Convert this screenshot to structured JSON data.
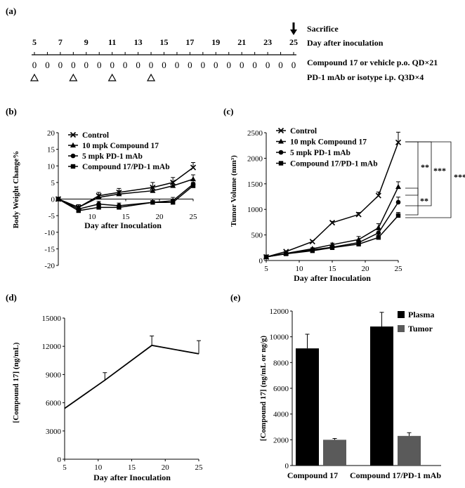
{
  "panel_a": {
    "label": "(a)",
    "sacrifice_label": "Sacrifice",
    "axis_caption": "Day after inoculation",
    "day_labels": [
      "5",
      "7",
      "9",
      "11",
      "13",
      "15",
      "17",
      "19",
      "21",
      "23",
      "25"
    ],
    "day_marks": [
      5,
      6,
      7,
      8,
      9,
      10,
      11,
      12,
      13,
      14,
      15,
      16,
      17,
      18,
      19,
      20,
      21,
      22,
      23,
      24,
      25
    ],
    "dose_symbol": "0",
    "triangle_days": [
      5,
      8,
      11,
      14
    ],
    "sacrifice_day": 25,
    "compound_schedule": "Compound 17 or vehicle p.o. QD×21",
    "pd1_schedule": "PD-1 mAb or isotype i.p. Q3D×4"
  },
  "chart_data": [
    {
      "panel": "(b)",
      "type": "line",
      "title": "",
      "xlabel": "Day after Inoculation",
      "ylabel": "Body Weight Change%",
      "xlim": [
        5,
        25
      ],
      "ylim": [
        -20,
        20
      ],
      "xticks": [
        "10",
        "15",
        "20",
        "25"
      ],
      "yticks": [
        "20",
        "15",
        "10",
        "5",
        "0",
        "-5",
        "-10",
        "-15",
        "-20"
      ],
      "x": [
        5,
        8,
        11,
        14,
        19,
        22,
        25
      ],
      "series": [
        {
          "name": "Control",
          "marker": "x",
          "values": [
            0,
            -2.5,
            1,
            2,
            3.5,
            5,
            9.5
          ],
          "err": [
            0.3,
            0.8,
            1,
            1.2,
            1.5,
            1.5,
            1.5
          ]
        },
        {
          "name": "10 mpk Compound 17",
          "marker": "triangle",
          "values": [
            0,
            -2.5,
            0.5,
            1.5,
            2.5,
            4,
            6
          ],
          "err": [
            0.3,
            0.8,
            0.8,
            1,
            1.2,
            1.3,
            1.3
          ]
        },
        {
          "name": "5 mpk PD-1 mAb",
          "marker": "circle",
          "values": [
            0,
            -3,
            -1.5,
            -2,
            -1,
            -0.5,
            4.5
          ],
          "err": [
            0.3,
            0.6,
            0.8,
            0.8,
            1,
            1,
            1
          ]
        },
        {
          "name": "Compound 17/PD-1 mAb",
          "marker": "square",
          "values": [
            0,
            -3.5,
            -2.5,
            -2.5,
            -1,
            -1,
            4
          ],
          "err": [
            0.3,
            0.6,
            0.6,
            0.6,
            1,
            1,
            1
          ]
        }
      ],
      "legend": "top-left"
    },
    {
      "panel": "(c)",
      "type": "line",
      "title": "",
      "xlabel": "Day after Inoculation",
      "ylabel": "Tumor Volume (mm³)",
      "xlim": [
        5,
        25
      ],
      "ylim": [
        0,
        2500
      ],
      "xticks": [
        "5",
        "10",
        "15",
        "20",
        "25"
      ],
      "yticks": [
        "2500",
        "2000",
        "1500",
        "1000",
        "500",
        "0"
      ],
      "x": [
        5,
        8,
        12,
        15,
        19,
        22,
        25
      ],
      "series": [
        {
          "name": "Control",
          "marker": "x",
          "values": [
            70,
            175,
            370,
            740,
            900,
            1270,
            2310
          ],
          "err": [
            10,
            15,
            20,
            25,
            40,
            70,
            200
          ]
        },
        {
          "name": "10 mpk Compound 17",
          "marker": "triangle",
          "values": [
            70,
            140,
            230,
            310,
            410,
            640,
            1440
          ],
          "err": [
            10,
            15,
            20,
            30,
            60,
            80,
            100
          ]
        },
        {
          "name": "5 mpk PD-1 mAb",
          "marker": "circle",
          "values": [
            70,
            135,
            210,
            260,
            350,
            540,
            1140
          ],
          "err": [
            10,
            15,
            20,
            30,
            40,
            60,
            100
          ]
        },
        {
          "name": "Compound 17/PD-1 mAb",
          "marker": "square",
          "values": [
            70,
            130,
            190,
            250,
            320,
            450,
            880
          ],
          "err": [
            10,
            10,
            15,
            20,
            30,
            40,
            60
          ]
        }
      ],
      "significance": [
        "**",
        "***",
        "****",
        "**"
      ],
      "legend": "top-left"
    },
    {
      "panel": "(d)",
      "type": "line",
      "title": "",
      "xlabel": "Day after Inoculation",
      "ylabel": "[Compound 17] (ng/mL)",
      "xlim": [
        5,
        25
      ],
      "ylim": [
        0,
        15000
      ],
      "xticks": [
        "5",
        "10",
        "15",
        "20",
        "25"
      ],
      "yticks": [
        "15000",
        "12000",
        "9000",
        "6000",
        "3000",
        "0"
      ],
      "x": [
        5,
        11,
        18,
        25
      ],
      "series": [
        {
          "name": "Compound 17",
          "values": [
            5400,
            8400,
            12100,
            11200
          ],
          "err": [
            0,
            800,
            1000,
            1400
          ]
        }
      ]
    },
    {
      "panel": "(e)",
      "type": "bar",
      "title": "",
      "xlabel": "",
      "ylabel": "[Compound 17] (ng/mL or ng/g)",
      "ylim": [
        0,
        12000
      ],
      "yticks": [
        "12000",
        "10000",
        "8000",
        "6000",
        "4000",
        "2000",
        "0"
      ],
      "categories": [
        "Compound 17",
        "Compound 17/PD-1 mAb"
      ],
      "series": [
        {
          "name": "Plasma",
          "color": "#000000",
          "values": [
            9100,
            10800
          ],
          "err": [
            1100,
            1100
          ]
        },
        {
          "name": "Tumor",
          "color": "#5a5a5a",
          "values": [
            2000,
            2300
          ],
          "err": [
            100,
            250
          ]
        }
      ],
      "legend": "top-right"
    }
  ]
}
